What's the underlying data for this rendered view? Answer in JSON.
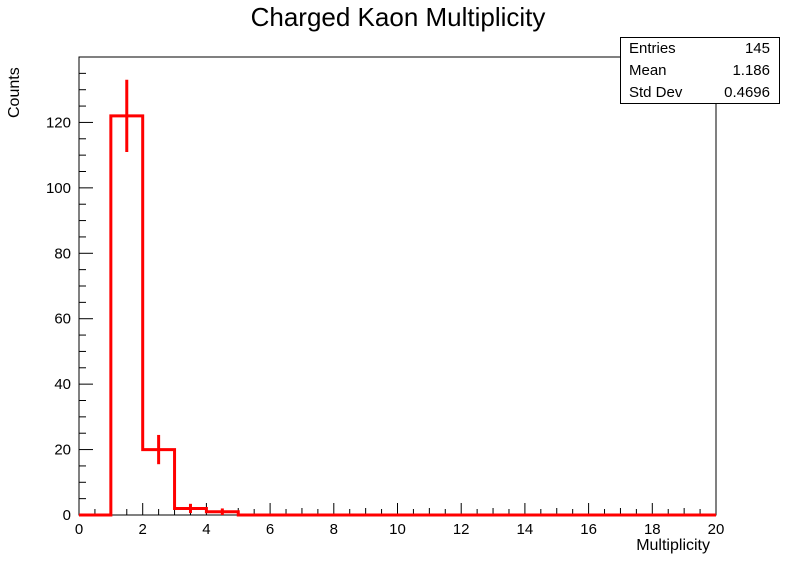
{
  "chart_data": {
    "type": "histogram",
    "title": "Charged Kaon Multiplicity",
    "xlabel": "Multiplicity",
    "ylabel": "Counts",
    "xlim": [
      0,
      20
    ],
    "ylim": [
      0,
      140
    ],
    "xticks": [
      0,
      2,
      4,
      6,
      8,
      10,
      12,
      14,
      16,
      18,
      20
    ],
    "yticks": [
      0,
      20,
      40,
      60,
      80,
      100,
      120
    ],
    "bin_width": 1,
    "bins": [
      {
        "low": 0,
        "high": 1,
        "count": 0
      },
      {
        "low": 1,
        "high": 2,
        "count": 122
      },
      {
        "low": 2,
        "high": 3,
        "count": 20
      },
      {
        "low": 3,
        "high": 4,
        "count": 2
      },
      {
        "low": 4,
        "high": 5,
        "count": 1
      },
      {
        "low": 5,
        "high": 6,
        "count": 0
      },
      {
        "low": 6,
        "high": 7,
        "count": 0
      },
      {
        "low": 7,
        "high": 8,
        "count": 0
      },
      {
        "low": 8,
        "high": 9,
        "count": 0
      },
      {
        "low": 9,
        "high": 10,
        "count": 0
      },
      {
        "low": 10,
        "high": 11,
        "count": 0
      },
      {
        "low": 11,
        "high": 12,
        "count": 0
      },
      {
        "low": 12,
        "high": 13,
        "count": 0
      },
      {
        "low": 13,
        "high": 14,
        "count": 0
      },
      {
        "low": 14,
        "high": 15,
        "count": 0
      },
      {
        "low": 15,
        "high": 16,
        "count": 0
      },
      {
        "low": 16,
        "high": 17,
        "count": 0
      },
      {
        "low": 17,
        "high": 18,
        "count": 0
      },
      {
        "low": 18,
        "high": 19,
        "count": 0
      },
      {
        "low": 19,
        "high": 20,
        "count": 0
      }
    ],
    "line_color": "#ff0000",
    "error_bars": "sqrt(N)",
    "grid": false,
    "stats_box": {
      "entries_label": "Entries",
      "entries": "145",
      "mean_label": "Mean",
      "mean": "1.186",
      "stddev_label": "Std Dev",
      "stddev": "0.4696"
    }
  }
}
